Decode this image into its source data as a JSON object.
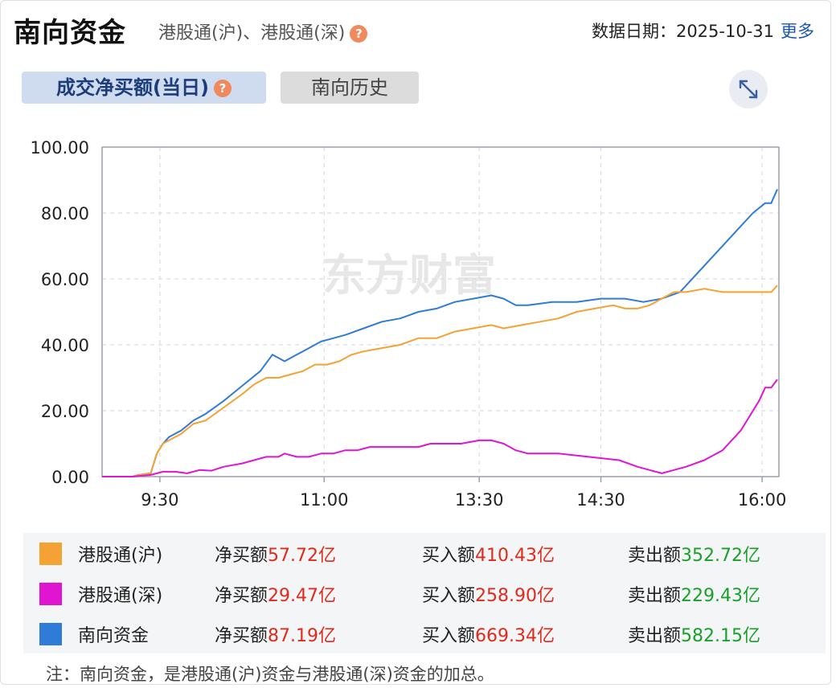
{
  "header": {
    "title": "南向资金",
    "subtitle": "港股通(沪)、港股通(深)",
    "date_label": "数据日期：",
    "date_value": "2025-10-31",
    "more_link": "更多"
  },
  "tabs": [
    {
      "label": "成交净买额(当日)",
      "active": true
    },
    {
      "label": "南向历史",
      "active": false
    }
  ],
  "watermark": "东方财富",
  "chart_data": {
    "type": "line",
    "x_ticks": [
      "9:30",
      "11:00",
      "13:30",
      "14:30",
      "16:00"
    ],
    "y_ticks": [
      "0.00",
      "20.00",
      "40.00",
      "60.00",
      "80.00",
      "100.00"
    ],
    "ylim": [
      0,
      100
    ],
    "grid": true,
    "series": [
      {
        "name": "港股通(沪)",
        "color": "#f4a233",
        "points": [
          [
            0,
            0
          ],
          [
            10,
            0
          ],
          [
            12,
            0.5
          ],
          [
            16,
            1
          ],
          [
            18,
            7
          ],
          [
            20,
            10
          ],
          [
            22,
            11
          ],
          [
            26,
            13
          ],
          [
            30,
            16
          ],
          [
            34,
            17
          ],
          [
            40,
            21
          ],
          [
            46,
            25
          ],
          [
            50,
            28
          ],
          [
            54,
            30
          ],
          [
            58,
            30
          ],
          [
            62,
            31
          ],
          [
            66,
            32
          ],
          [
            70,
            34
          ],
          [
            74,
            34
          ],
          [
            78,
            35
          ],
          [
            82,
            37
          ],
          [
            86,
            38
          ],
          [
            92,
            39
          ],
          [
            98,
            40
          ],
          [
            104,
            42
          ],
          [
            110,
            42
          ],
          [
            116,
            44
          ],
          [
            122,
            45
          ],
          [
            128,
            46
          ],
          [
            132,
            45
          ],
          [
            138,
            46
          ],
          [
            144,
            47
          ],
          [
            150,
            48
          ],
          [
            156,
            50
          ],
          [
            162,
            51
          ],
          [
            168,
            52
          ],
          [
            172,
            51
          ],
          [
            176,
            51
          ],
          [
            180,
            52
          ],
          [
            184,
            54
          ],
          [
            188,
            56
          ],
          [
            192,
            56
          ],
          [
            198,
            57
          ],
          [
            204,
            56
          ],
          [
            210,
            56
          ],
          [
            220,
            56
          ],
          [
            222,
            58
          ]
        ]
      },
      {
        "name": "港股通(深)",
        "color": "#e015d1",
        "points": [
          [
            0,
            0
          ],
          [
            10,
            0
          ],
          [
            12,
            0.2
          ],
          [
            16,
            0.5
          ],
          [
            20,
            1.5
          ],
          [
            24,
            1.5
          ],
          [
            28,
            1
          ],
          [
            32,
            2
          ],
          [
            36,
            1.8
          ],
          [
            40,
            3
          ],
          [
            46,
            4
          ],
          [
            50,
            5
          ],
          [
            54,
            6
          ],
          [
            58,
            6
          ],
          [
            60,
            7
          ],
          [
            64,
            6
          ],
          [
            68,
            6
          ],
          [
            72,
            7
          ],
          [
            76,
            7
          ],
          [
            80,
            8
          ],
          [
            84,
            8
          ],
          [
            88,
            9
          ],
          [
            94,
            9
          ],
          [
            100,
            9
          ],
          [
            104,
            9
          ],
          [
            108,
            10
          ],
          [
            114,
            10
          ],
          [
            118,
            10
          ],
          [
            124,
            11
          ],
          [
            128,
            11
          ],
          [
            132,
            10
          ],
          [
            136,
            8
          ],
          [
            140,
            7
          ],
          [
            150,
            7
          ],
          [
            160,
            6
          ],
          [
            170,
            5
          ],
          [
            176,
            3
          ],
          [
            180,
            2
          ],
          [
            184,
            1
          ],
          [
            188,
            2
          ],
          [
            192,
            3
          ],
          [
            198,
            5
          ],
          [
            204,
            8
          ],
          [
            210,
            14
          ],
          [
            216,
            23
          ],
          [
            218,
            27
          ],
          [
            220,
            27
          ],
          [
            222,
            29.5
          ]
        ]
      },
      {
        "name": "南向资金",
        "color": "#2f7bd8",
        "points": [
          [
            0,
            0
          ],
          [
            10,
            0
          ],
          [
            12,
            0.5
          ],
          [
            16,
            1
          ],
          [
            18,
            7
          ],
          [
            20,
            10
          ],
          [
            22,
            12
          ],
          [
            26,
            14
          ],
          [
            30,
            17
          ],
          [
            34,
            19
          ],
          [
            40,
            23
          ],
          [
            44,
            26
          ],
          [
            48,
            29
          ],
          [
            52,
            32
          ],
          [
            56,
            37
          ],
          [
            60,
            35
          ],
          [
            64,
            37
          ],
          [
            68,
            39
          ],
          [
            72,
            41
          ],
          [
            76,
            42
          ],
          [
            80,
            43
          ],
          [
            86,
            45
          ],
          [
            92,
            47
          ],
          [
            98,
            48
          ],
          [
            104,
            50
          ],
          [
            110,
            51
          ],
          [
            116,
            53
          ],
          [
            122,
            54
          ],
          [
            128,
            55
          ],
          [
            132,
            54
          ],
          [
            136,
            52
          ],
          [
            140,
            52
          ],
          [
            148,
            53
          ],
          [
            156,
            53
          ],
          [
            164,
            54
          ],
          [
            172,
            54
          ],
          [
            178,
            53
          ],
          [
            184,
            54
          ],
          [
            190,
            56
          ],
          [
            196,
            62
          ],
          [
            202,
            68
          ],
          [
            208,
            74
          ],
          [
            214,
            80
          ],
          [
            218,
            83
          ],
          [
            220,
            83
          ],
          [
            222,
            87.2
          ]
        ]
      }
    ]
  },
  "legend": [
    {
      "name": "港股通(沪)",
      "color": "#f4a233",
      "net_label": "净买额",
      "net": "57.72亿",
      "buy_label": "买入额",
      "buy": "410.43亿",
      "sell_label": "卖出额",
      "sell": "352.72亿"
    },
    {
      "name": "港股通(深)",
      "color": "#e015d1",
      "net_label": "净买额",
      "net": "29.47亿",
      "buy_label": "买入额",
      "buy": "258.90亿",
      "sell_label": "卖出额",
      "sell": "229.43亿"
    },
    {
      "name": "南向资金",
      "color": "#2f7bd8",
      "net_label": "净买额",
      "net": "87.19亿",
      "buy_label": "买入额",
      "buy": "669.34亿",
      "sell_label": "卖出额",
      "sell": "582.15亿"
    }
  ],
  "note": "注：南向资金，是港股通(沪)资金与港股通(深)资金的加总。",
  "icons": {
    "help": "question-mark-icon",
    "expand": "expand-diagonal-icon"
  }
}
